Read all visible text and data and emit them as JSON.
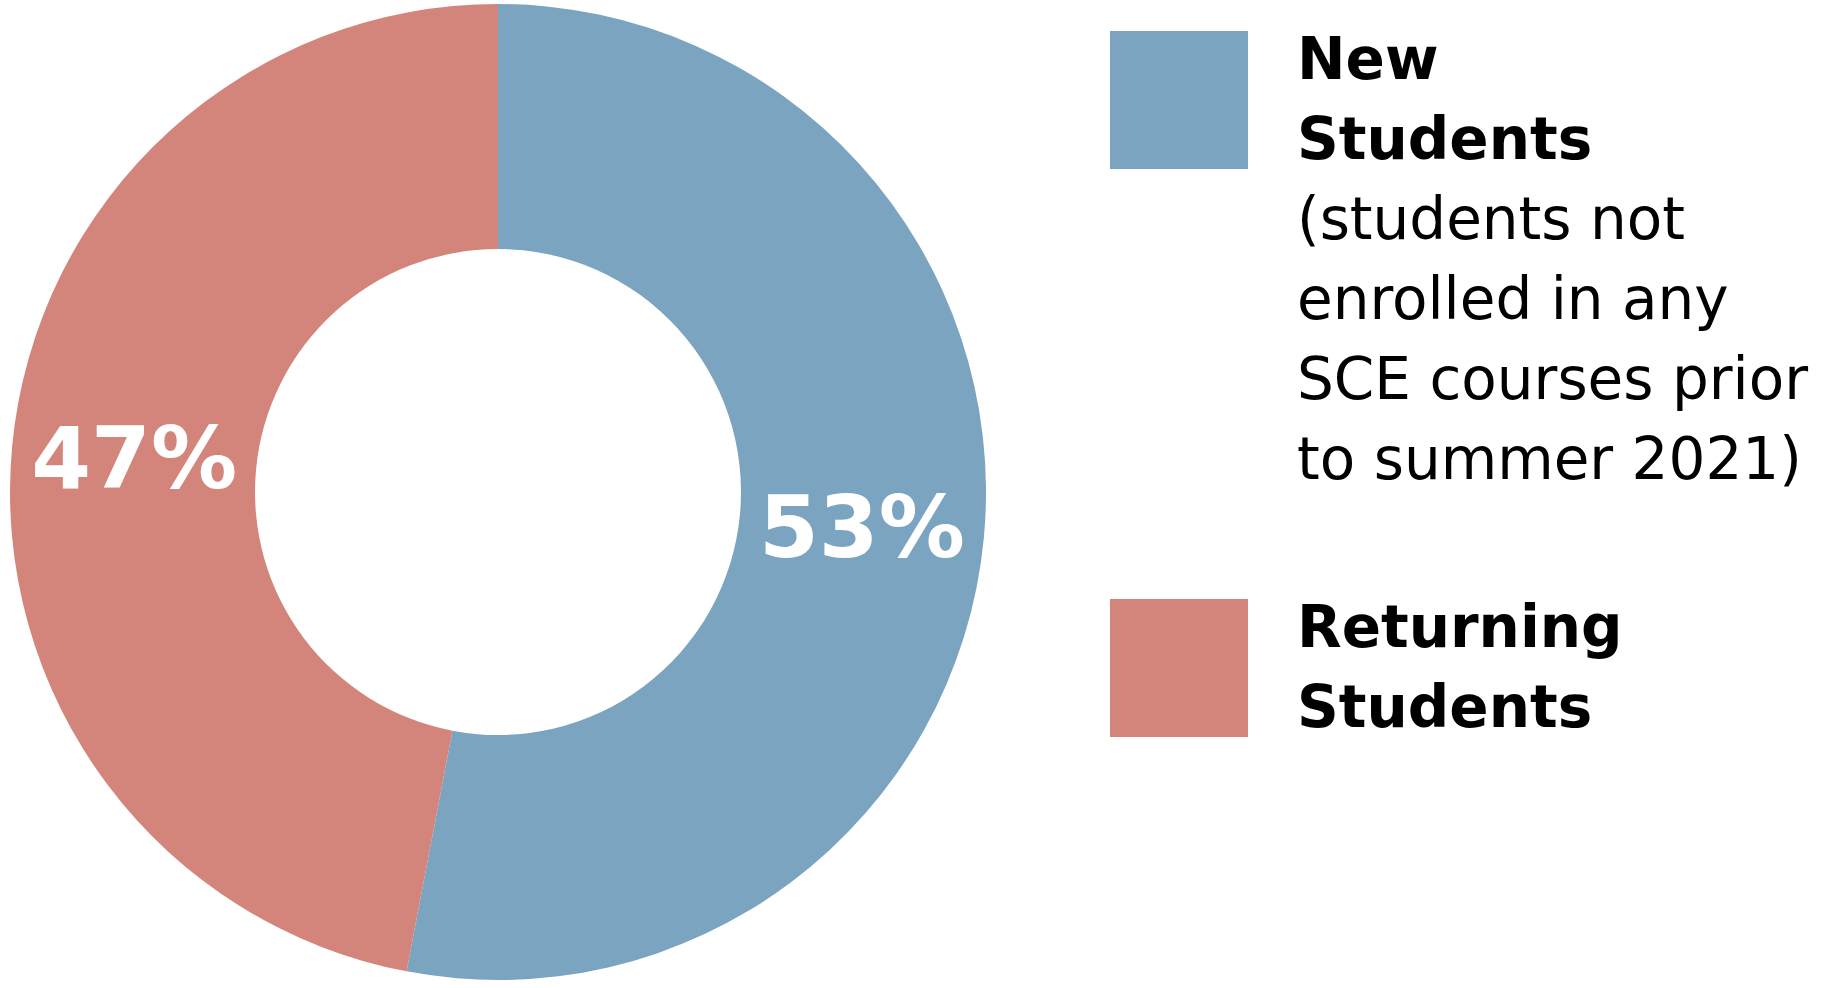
{
  "chart_data": {
    "type": "donut",
    "categories": [
      "New Students",
      "Returning Students"
    ],
    "values": [
      53,
      47
    ],
    "colors": [
      "#7ba4c1",
      "#d4857b"
    ],
    "value_labels": [
      "53%",
      "47%"
    ],
    "legend": "right",
    "annotations": [
      "(students not enrolled in any SCE courses prior to summer 2021)"
    ]
  }
}
